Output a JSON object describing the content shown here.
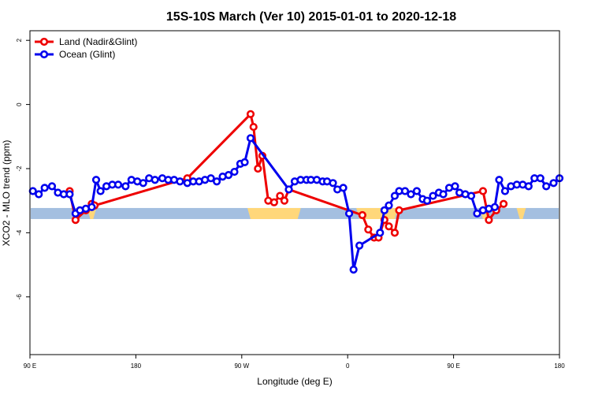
{
  "chart_data": {
    "type": "line",
    "title": "15S-10S March (Ver 10)   2015-01-01 to 2020-12-18",
    "xlabel": "Longitude (deg E)",
    "ylabel": "XCO2 - MLO trend (ppm)",
    "xlim": [
      90,
      450
    ],
    "ylim": [
      -7.8,
      2.3
    ],
    "x_ticks": [
      {
        "value": 90,
        "label": "90 E"
      },
      {
        "value": 162,
        "label": "180"
      },
      {
        "value": 234,
        "label": "90 W"
      },
      {
        "value": 306,
        "label": "0"
      },
      {
        "value": 378,
        "label": "90 E"
      },
      {
        "value": 450,
        "label": "180"
      }
    ],
    "y_ticks": [
      {
        "value": 2,
        "label": "2"
      },
      {
        "value": 0,
        "label": "0"
      },
      {
        "value": -2,
        "label": "-2"
      },
      {
        "value": -4,
        "label": "-4"
      },
      {
        "value": -6,
        "label": "-6"
      }
    ],
    "legend_position": "top-left",
    "surface_band": {
      "y": -3.4,
      "ocean_color": "#a4bfe0",
      "land_color": "#ffd77a",
      "land_ranges": [
        [
          131,
          133
        ],
        [
          240,
          272
        ],
        [
          314,
          338
        ],
        [
          398,
          400
        ],
        [
          423,
          425
        ]
      ]
    },
    "series": [
      {
        "name": "Land (Nadir&Glint)",
        "color": "#ee0000",
        "x": [
          117,
          121,
          128,
          132,
          134,
          197,
          240,
          242,
          245,
          248,
          252,
          256,
          260,
          263,
          266,
          316,
          320,
          324,
          327,
          331,
          334,
          338,
          341,
          398,
          402,
          407,
          412
        ],
        "y": [
          -2.7,
          -3.6,
          -3.3,
          -3.1,
          -3.15,
          -2.3,
          -0.3,
          -0.7,
          -2.0,
          -1.6,
          -3.0,
          -3.05,
          -2.85,
          -3.0,
          -2.65,
          -3.45,
          -3.9,
          -4.15,
          -4.15,
          -3.6,
          -3.8,
          -4.0,
          -3.3,
          -2.7,
          -3.6,
          -3.3,
          -3.1
        ]
      },
      {
        "name": "Ocean (Glint)",
        "color": "#0000ee",
        "x": [
          92,
          96,
          100,
          105,
          109,
          113,
          117,
          121,
          124,
          128,
          132,
          135,
          138,
          142,
          146,
          150,
          155,
          159,
          163,
          167,
          171,
          175,
          180,
          184,
          188,
          192,
          197,
          201,
          205,
          209,
          213,
          217,
          221,
          225,
          229,
          233,
          236,
          240,
          266,
          270,
          274,
          278,
          281,
          285,
          289,
          292,
          296,
          299,
          303,
          307,
          310,
          314,
          328,
          331,
          334,
          338,
          341,
          345,
          349,
          353,
          357,
          360,
          364,
          368,
          371,
          375,
          379,
          382,
          386,
          390,
          394,
          398,
          402,
          406,
          409,
          413,
          417,
          421,
          425,
          429,
          433,
          437,
          441,
          446,
          450
        ],
        "y": [
          -2.7,
          -2.8,
          -2.6,
          -2.55,
          -2.75,
          -2.8,
          -2.8,
          -3.4,
          -3.3,
          -3.25,
          -3.2,
          -2.35,
          -2.7,
          -2.55,
          -2.5,
          -2.5,
          -2.55,
          -2.35,
          -2.4,
          -2.45,
          -2.3,
          -2.35,
          -2.3,
          -2.35,
          -2.35,
          -2.4,
          -2.45,
          -2.4,
          -2.4,
          -2.35,
          -2.3,
          -2.4,
          -2.25,
          -2.2,
          -2.1,
          -1.85,
          -1.8,
          -1.05,
          -2.65,
          -2.4,
          -2.35,
          -2.35,
          -2.35,
          -2.35,
          -2.4,
          -2.4,
          -2.45,
          -2.65,
          -2.6,
          -3.4,
          -5.15,
          -4.4,
          -4.0,
          -3.3,
          -3.15,
          -2.85,
          -2.7,
          -2.7,
          -2.8,
          -2.7,
          -2.95,
          -3.0,
          -2.85,
          -2.75,
          -2.8,
          -2.6,
          -2.55,
          -2.75,
          -2.8,
          -2.85,
          -3.4,
          -3.3,
          -3.25,
          -3.2,
          -2.35,
          -2.7,
          -2.55,
          -2.5,
          -2.5,
          -2.55,
          -2.3,
          -2.3,
          -2.55,
          -2.45,
          -2.3
        ]
      }
    ]
  }
}
